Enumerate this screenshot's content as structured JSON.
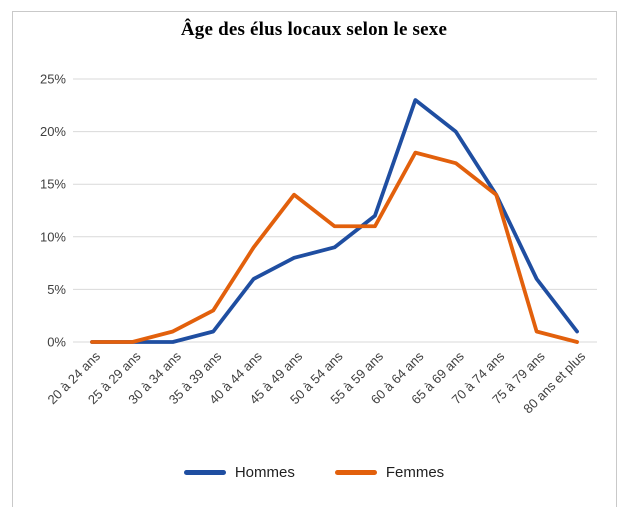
{
  "window": {
    "background_color": "#FFFFFF",
    "frame_border_color": "#C9C9C9"
  },
  "chart_data": {
    "type": "line",
    "title": "Âge des élus locaux selon le sexe",
    "categories": [
      "20 à 24 ans",
      "25 à 29 ans",
      "30 à 34 ans",
      "35 à 39 ans",
      "40 à 44 ans",
      "45 à 49 ans",
      "50 à 54 ans",
      "55 à 59 ans",
      "60 à 64 ans",
      "65 à 69 ans",
      "70 à 74 ans",
      "75 à 79 ans",
      "80 ans et plus"
    ],
    "series": [
      {
        "name": "Hommes",
        "color": "#1F4EA1",
        "values": [
          0,
          0,
          0,
          1,
          6,
          8,
          9,
          12,
          23,
          20,
          14,
          6,
          1
        ]
      },
      {
        "name": "Femmes",
        "color": "#E2600C",
        "values": [
          0,
          0,
          1,
          3,
          9,
          14,
          11,
          11,
          18,
          17,
          14,
          1,
          0
        ]
      }
    ],
    "y_ticks": {
      "values": [
        0,
        5,
        10,
        15,
        20,
        25
      ],
      "labels": [
        "0%",
        "5%",
        "10%",
        "15%",
        "20%",
        "25%"
      ]
    },
    "ylim": [
      0,
      25
    ],
    "y_unit": "%",
    "grid": "horizontal",
    "gridline_color": "#D9D9D9",
    "tick_label_color": "#404040",
    "legend_position": "bottom",
    "xlabel": "",
    "ylabel": ""
  }
}
